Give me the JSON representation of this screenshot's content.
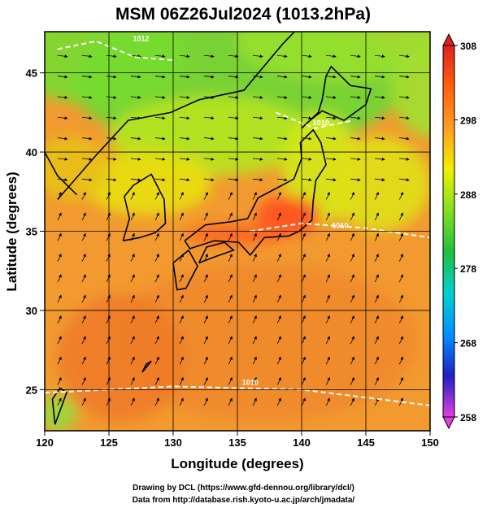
{
  "chart_data": {
    "type": "heatmap",
    "title": "MSM 06Z26Jul2024 (1013.2hPa)",
    "xlabel": "Longitude (degrees)",
    "ylabel": "Latitude  (degrees)",
    "xlim": [
      120,
      150
    ],
    "ylim": [
      22.4,
      47.6
    ],
    "x_ticks": [
      120,
      125,
      130,
      135,
      140,
      145,
      150
    ],
    "y_ticks": [
      25,
      30,
      35,
      40,
      45
    ],
    "grid": true,
    "colorbar": {
      "ticks": [
        258,
        268,
        278,
        288,
        298,
        308
      ],
      "range": [
        258,
        308
      ],
      "extend": "both",
      "colors": [
        "#e040e0",
        "#2020c0",
        "#0090ff",
        "#00d0d0",
        "#20c040",
        "#80e020",
        "#f0f000",
        "#ffa020",
        "#ff6010",
        "#e02020"
      ]
    },
    "contours": [
      {
        "label": "1010",
        "lon": 143,
        "lat": 35.2
      },
      {
        "label": "1010",
        "lon": 136,
        "lat": 25.3
      },
      {
        "label": "1010",
        "lon": 141.5,
        "lat": 41.7
      },
      {
        "label": "1012",
        "lon": 127.5,
        "lat": 47
      }
    ],
    "land_color": "#000000",
    "wind_lines_color": "#000000",
    "contour_color": "#ffffff"
  },
  "credits": {
    "line1": "Drawing by DCL (https://www.gfd-dennou.org/library/dcl/)",
    "line2": "Data from http://database.rish.kyoto-u.ac.jp/arch/jmadata/"
  }
}
